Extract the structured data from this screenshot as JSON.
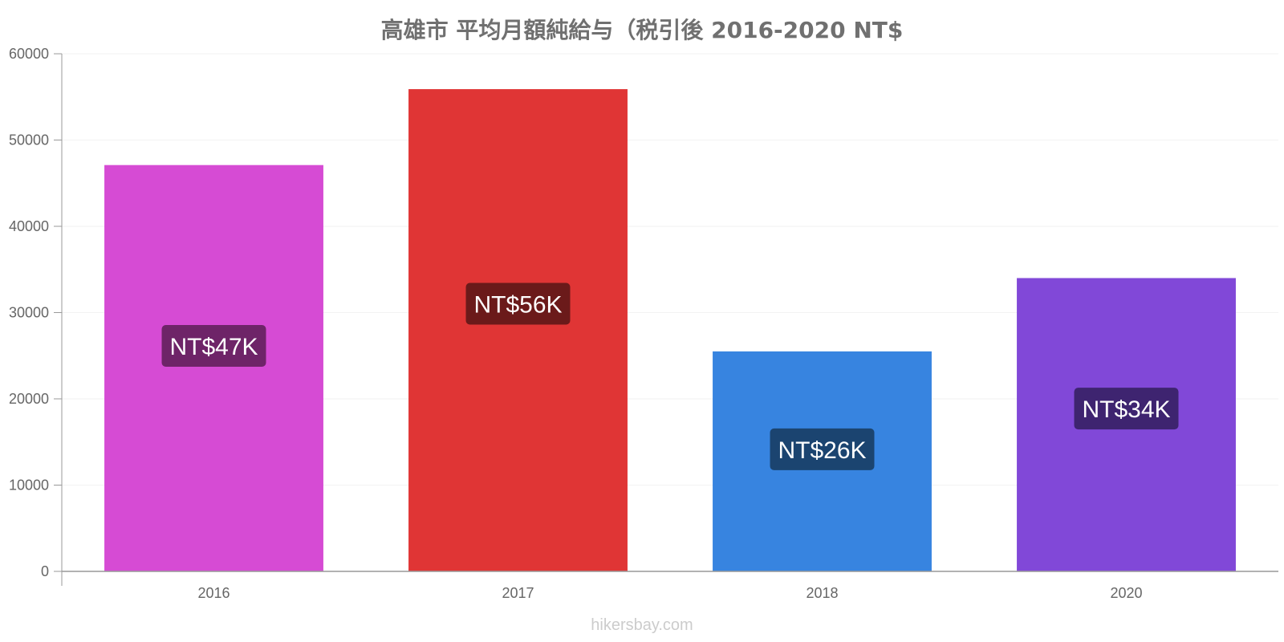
{
  "chart_data": {
    "type": "bar",
    "title": "高雄市 平均月額純給与（税引後 2016-2020 NT$",
    "xlabel": "",
    "ylabel": "",
    "categories": [
      "2016",
      "2017",
      "2018",
      "2020"
    ],
    "values": [
      47100,
      55900,
      25500,
      34000
    ],
    "data_labels": [
      "NT$47K",
      "NT$56K",
      "NT$26K",
      "NT$34K"
    ],
    "bar_colors": [
      "#d64bd4",
      "#e03535",
      "#3784e0",
      "#8148d8"
    ],
    "label_bg_colors": [
      "#6e2468",
      "#6b1a1a",
      "#1b4470",
      "#3e2470"
    ],
    "ylim": [
      0,
      60000
    ],
    "yticks": [
      "0",
      "10000",
      "20000",
      "30000",
      "40000",
      "50000",
      "60000"
    ],
    "grid": true,
    "legend": "none"
  },
  "watermark": "hikersbay.com"
}
